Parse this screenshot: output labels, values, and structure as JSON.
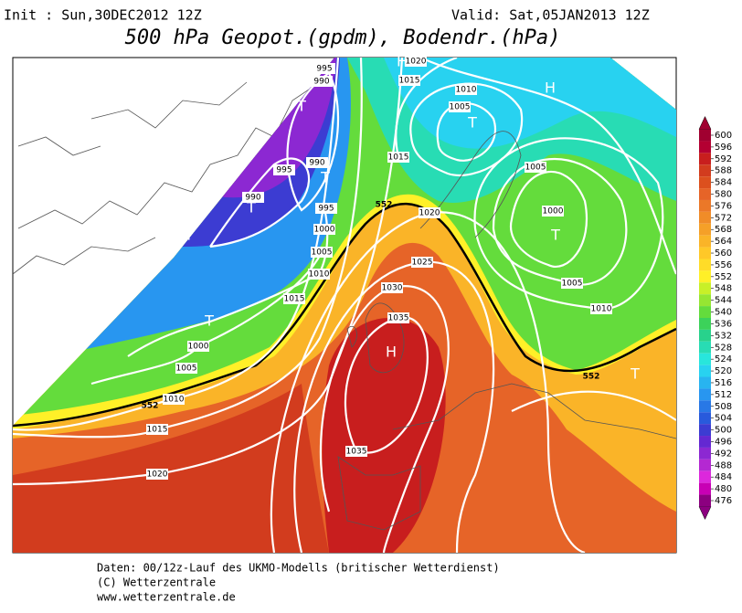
{
  "header": {
    "init": "Init : Sun,30DEC2012 12Z",
    "valid": "Valid: Sat,05JAN2013 12Z",
    "title": "500 hPa Geopot.(gpdm), Bodendr.(hPa)"
  },
  "isobar_labels": [
    995,
    990,
    1020,
    1015,
    1010,
    1005,
    1015,
    995,
    990,
    990,
    995,
    1000,
    1005,
    1010,
    1015,
    1020,
    1025,
    1030,
    1035,
    1005,
    1000,
    1005,
    1010,
    1000,
    1005,
    1010,
    1015,
    1020,
    1035
  ],
  "contour_552_labels": [
    552,
    552,
    552
  ],
  "centers": [
    "H",
    "H",
    "T",
    "T",
    "T",
    "T",
    "H",
    "T",
    "T",
    "H",
    "T"
  ],
  "colorbar": {
    "ticks": [
      600,
      596,
      592,
      588,
      584,
      580,
      576,
      572,
      568,
      564,
      560,
      556,
      552,
      548,
      544,
      540,
      536,
      532,
      528,
      524,
      520,
      516,
      512,
      508,
      504,
      500,
      496,
      492,
      488,
      484,
      480,
      476
    ],
    "colors": [
      "#a00030",
      "#b40032",
      "#c81e1e",
      "#d23c1e",
      "#dc501e",
      "#e66428",
      "#eb7828",
      "#f08c28",
      "#f5a028",
      "#fab428",
      "#ffc828",
      "#ffdc28",
      "#fff028",
      "#c8f028",
      "#96e632",
      "#64dc3c",
      "#3cd25a",
      "#28d28c",
      "#28dcb4",
      "#28e6dc",
      "#28d2f0",
      "#28b4f0",
      "#2896f0",
      "#2878e6",
      "#285adc",
      "#3c3cd2",
      "#6428d2",
      "#8c28d2",
      "#b428d2",
      "#dc28dc",
      "#c800b4",
      "#8c0080"
    ]
  },
  "footer": [
    "Daten: 00/12z-Lauf des UKMO-Modells (britischer Wetterdienst)",
    "(C) Wetterzentrale",
    "www.wetterzentrale.de"
  ]
}
